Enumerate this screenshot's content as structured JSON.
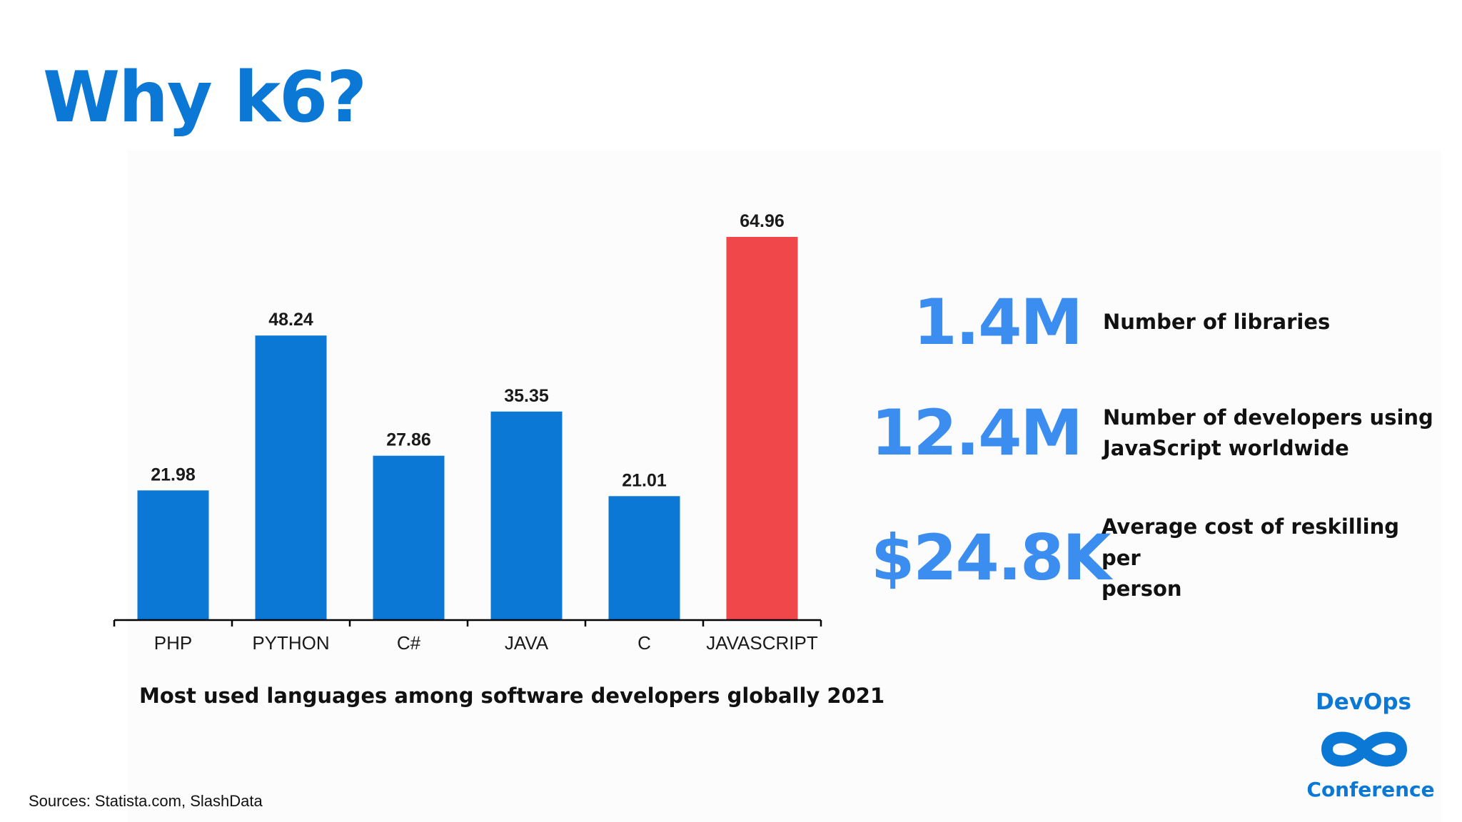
{
  "title": "Why k6?",
  "colors": {
    "title": "#0a78d4",
    "bar_default": "#0a78d4",
    "bar_highlight": "#f0474a",
    "stat_value": "#3b8ef0",
    "text": "#111111"
  },
  "chart_data": {
    "type": "bar",
    "title": "Most used languages among software developers globally 2021",
    "xlabel": "",
    "ylabel": "",
    "categories": [
      "PHP",
      "PYTHON",
      "C#",
      "JAVA",
      "C",
      "JAVASCRIPT"
    ],
    "values": [
      21.98,
      48.24,
      27.86,
      35.35,
      21.01,
      64.96
    ],
    "value_labels": [
      "21.98",
      "48.24",
      "27.86",
      "35.35",
      "21.01",
      "64.96"
    ],
    "highlight_index": 5,
    "ylim": [
      0,
      64.96
    ],
    "grid": false,
    "legend": "none"
  },
  "stats": [
    {
      "value": "1.4M",
      "desc_lines": [
        "Number of libraries"
      ]
    },
    {
      "value": "12.4M",
      "desc_lines": [
        "Number of developers using",
        "JavaScript worldwide"
      ]
    },
    {
      "value": "$24.8K",
      "desc_lines": [
        "Average cost of reskilling per",
        "person"
      ]
    }
  ],
  "sources": "Sources: Statista.com, SlashData",
  "logo": {
    "top": "DevOps",
    "bottom": "Conference",
    "icon": "infinity-icon"
  }
}
